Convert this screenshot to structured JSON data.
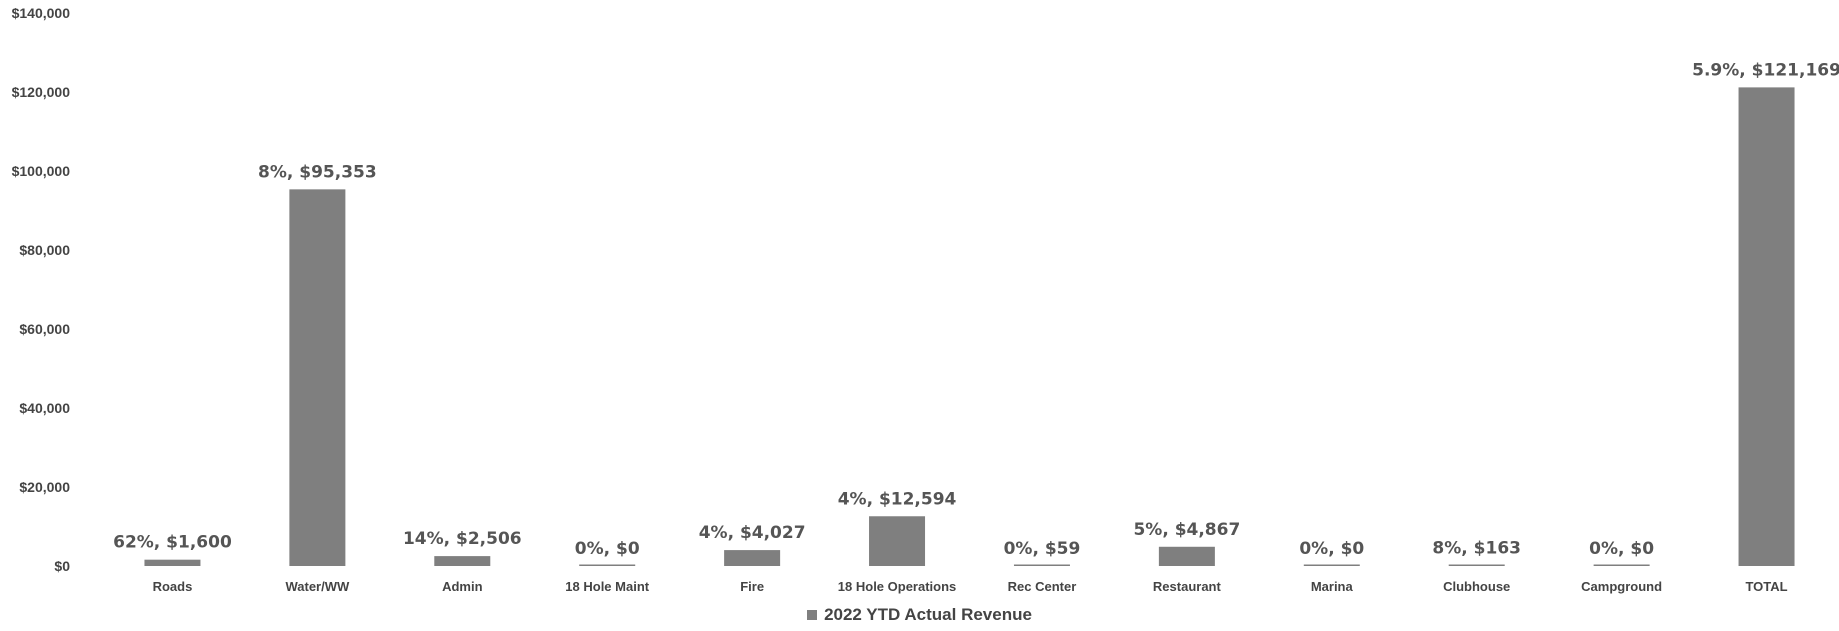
{
  "chart_data": {
    "type": "bar",
    "categories": [
      "Roads",
      "Water/WW",
      "Admin",
      "18 Hole Maint",
      "Fire",
      "18 Hole Operations",
      "Rec Center",
      "Restaurant",
      "Marina",
      "Clubhouse",
      "Campground",
      "TOTAL"
    ],
    "series": [
      {
        "name": "2022 YTD Actual Revenue",
        "values": [
          1600,
          95353,
          2506,
          0,
          4027,
          12594,
          59,
          4867,
          0,
          163,
          0,
          121169
        ],
        "data_labels": [
          "62%, $1,600",
          "8%, $95,353",
          "14%, $2,506",
          "0%, $0",
          "4%, $4,027",
          "4%, $12,594",
          "0%, $59",
          "5%, $4,867",
          "0%, $0",
          "8%, $163",
          "0%, $0",
          "5.9%, $121,169"
        ]
      }
    ],
    "ylim": [
      0,
      140000
    ],
    "yticks": [
      0,
      20000,
      40000,
      60000,
      80000,
      100000,
      120000,
      140000
    ],
    "ytick_labels": [
      "$0",
      "$20,000",
      "$40,000",
      "$60,000",
      "$80,000",
      "$100,000",
      "$120,000",
      "$140,000"
    ],
    "title": "",
    "xlabel": "",
    "ylabel": "",
    "grid": false,
    "legend_position": "bottom",
    "bar_color": "#7f7f7f"
  }
}
